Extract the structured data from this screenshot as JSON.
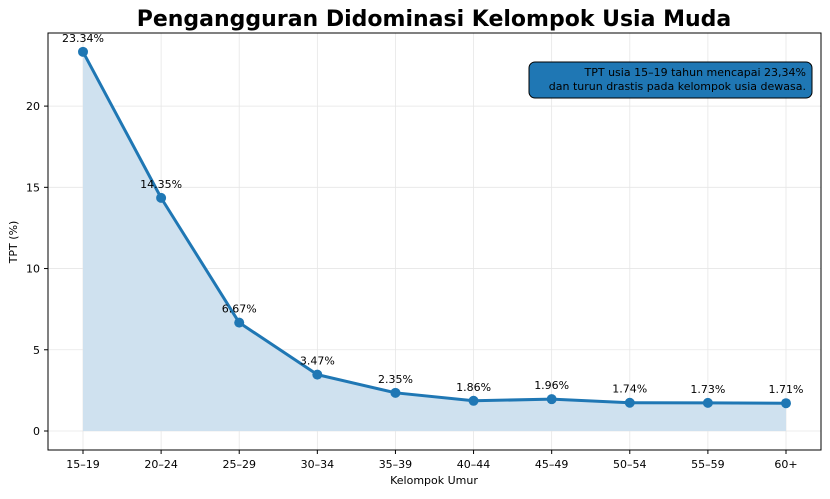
{
  "chart_data": {
    "type": "line",
    "title": "Pengangguran Didominasi Kelompok Usia Muda",
    "xlabel": "Kelompok Umur",
    "ylabel": "TPT (%)",
    "categories": [
      "15–19",
      "20–24",
      "25–29",
      "30–34",
      "35–39",
      "40–44",
      "45–49",
      "50–54",
      "55–59",
      "60+"
    ],
    "series": [
      {
        "values": [
          23.34,
          14.35,
          6.67,
          3.47,
          2.35,
          1.86,
          1.96,
          1.74,
          1.73,
          1.71
        ],
        "color": "#1f77b4",
        "fill": "#cfe1ef"
      }
    ],
    "data_labels": [
      "23.34%",
      "14.35%",
      "6.67%",
      "3.47%",
      "2.35%",
      "1.86%",
      "1.96%",
      "1.74%",
      "1.73%",
      "1.71%"
    ],
    "y_ticks": [
      0,
      5,
      10,
      15,
      20
    ],
    "ylim": [
      -1.17,
      24.5
    ],
    "grid": true,
    "annotation": {
      "lines": [
        "TPT usia 15–19 tahun mencapai 23,34%",
        "dan turun drastis pada kelompok usia dewasa."
      ],
      "position": "top-right",
      "box_color": "#1f77b4"
    }
  }
}
